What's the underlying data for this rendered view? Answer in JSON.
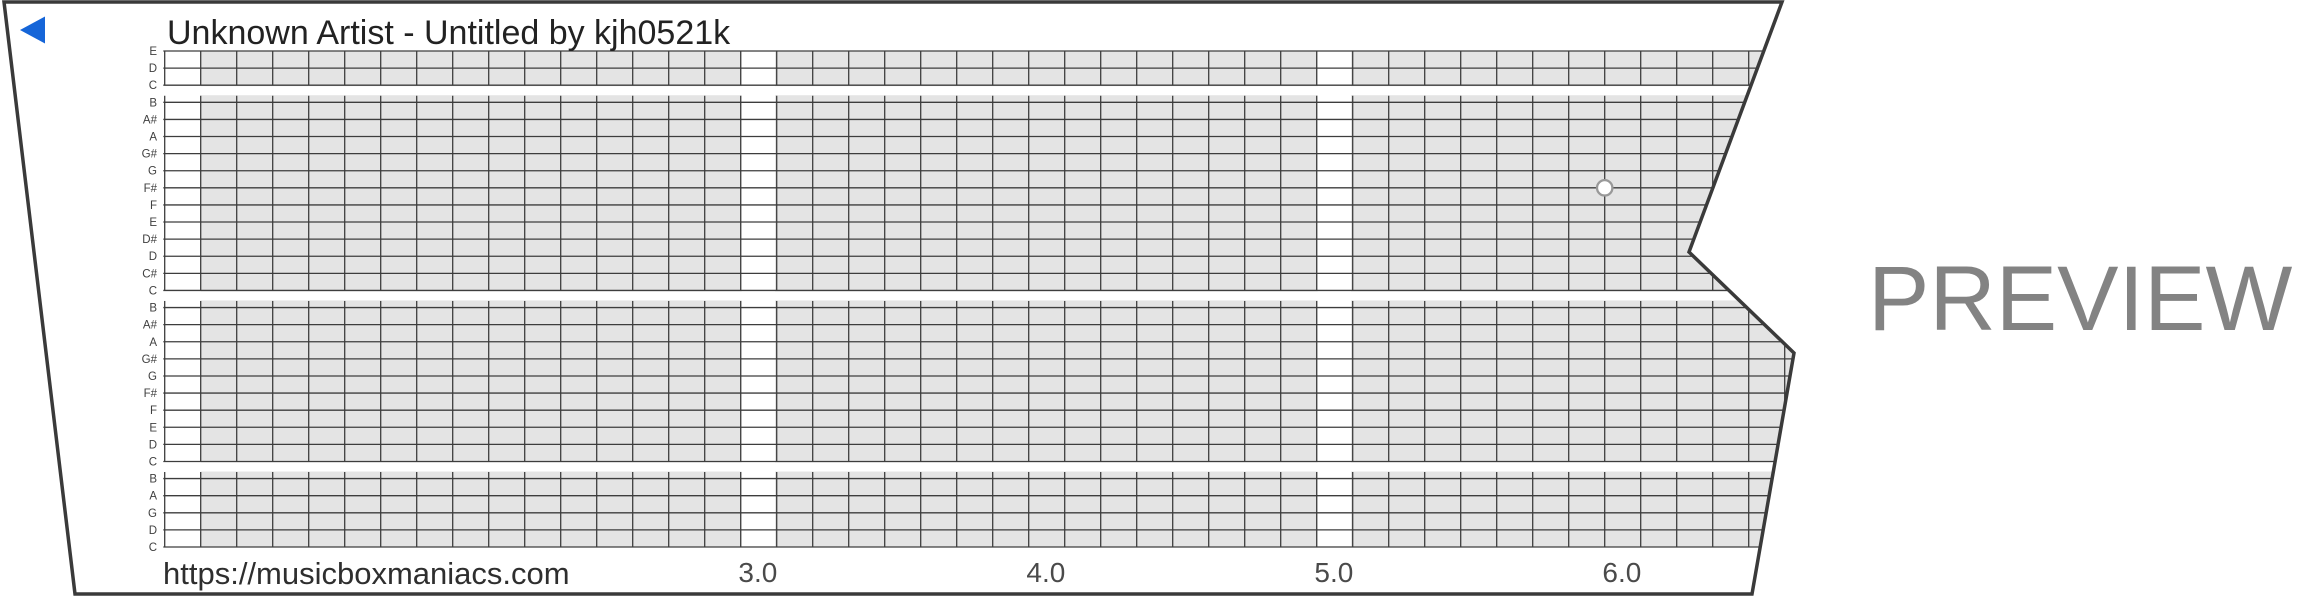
{
  "header": {
    "title": "Unknown Artist - Untitled by kjh0521k"
  },
  "watermark": {
    "label": "PREVIEW",
    "color": "#838383"
  },
  "footer": {
    "url": "https://musicboxmaniacs.com"
  },
  "play_marker": {
    "icon": "left-triangle",
    "color": "#1565d8"
  },
  "strip": {
    "note_labels": [
      "E",
      "D",
      "C",
      "B",
      "A#",
      "A",
      "G#",
      "G",
      "F#",
      "F",
      "E",
      "D#",
      "D",
      "C#",
      "C",
      "B",
      "A#",
      "A",
      "G#",
      "G",
      "F#",
      "F",
      "E",
      "D",
      "C",
      "B",
      "A",
      "G",
      "D",
      "C"
    ],
    "octave_breaks_after_line": [
      2,
      14,
      24
    ],
    "time_axis": {
      "labels": [
        "3.0",
        "4.0",
        "5.0",
        "6.0"
      ],
      "values": [
        3,
        4,
        5,
        6
      ]
    },
    "highlight_column_times": [
      3,
      5
    ],
    "notes": [
      {
        "pitch": "F#",
        "line_index": 8,
        "time": 6.0,
        "style": "hollow"
      }
    ],
    "colors": {
      "cell": "#e4e4e4",
      "grid_line": "#3d3d3d",
      "outline": "#3a3a3a",
      "note_label": "#3f3f3f",
      "axis_text": "#4a4a4a",
      "title_text": "#222222",
      "url_text": "#2e2e2e",
      "note_dot_stroke": "#999999",
      "note_dot_fill": "#ffffff"
    }
  }
}
